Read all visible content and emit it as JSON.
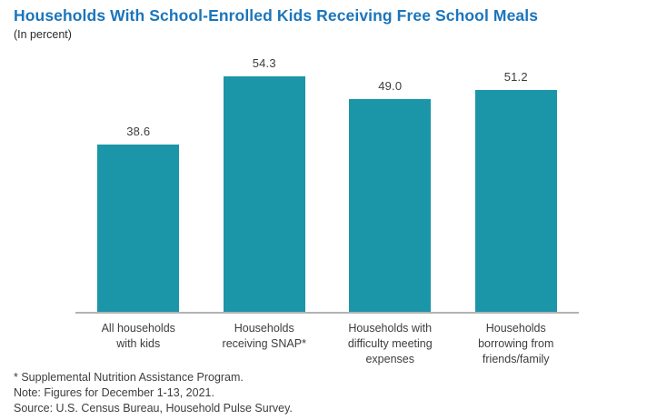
{
  "header": {
    "title": "Households With School-Enrolled Kids Receiving Free School Meals",
    "subtitle": "(In percent)"
  },
  "chart_data": {
    "type": "bar",
    "title": "Households With School-Enrolled Kids Receiving Free School Meals",
    "subtitle": "(In percent)",
    "categories": [
      "All households\nwith kids",
      "Households\nreceiving SNAP*",
      "Households with\ndifficulty meeting\nexpenses",
      "Households\nborrowing from\nfriends/family"
    ],
    "values": [
      38.6,
      54.3,
      49.0,
      51.2
    ],
    "value_labels": [
      "38.6",
      "54.3",
      "49.0",
      "51.2"
    ],
    "xlabel": "",
    "ylabel": "Percent",
    "ylim": [
      0,
      60
    ],
    "grid": false,
    "legend": "none",
    "bar_color": "#1B96A8"
  },
  "colors": {
    "title_blue": "#1B75BC",
    "bar_teal": "#1B96A8",
    "text_dark": "#3D3D3D",
    "axis_gray": "#B3B3B3",
    "background": "#FFFFFF"
  },
  "footer": {
    "notes": [
      "* Supplemental Nutrition Assistance Program.",
      "Note: Figures for December 1-13, 2021.",
      "Source: U.S. Census Bureau, Household Pulse Survey."
    ]
  }
}
